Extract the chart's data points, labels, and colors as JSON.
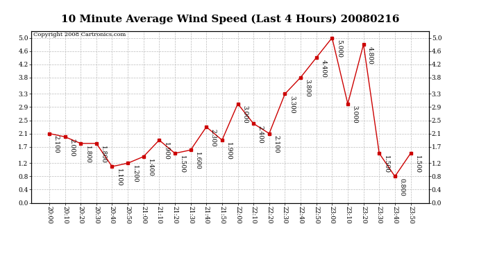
{
  "title": "10 Minute Average Wind Speed (Last 4 Hours) 20080216",
  "copyright": "Copyright 2008 Cartronics.com",
  "x_labels": [
    "20:00",
    "20:10",
    "20:20",
    "20:30",
    "20:40",
    "20:50",
    "21:00",
    "21:10",
    "21:20",
    "21:30",
    "21:40",
    "21:50",
    "22:00",
    "22:10",
    "22:20",
    "22:30",
    "22:40",
    "22:50",
    "23:00",
    "23:10",
    "23:20",
    "23:30",
    "23:40",
    "23:50"
  ],
  "y_values": [
    2.1,
    2.0,
    1.8,
    1.8,
    1.1,
    1.2,
    1.4,
    1.9,
    1.5,
    1.6,
    2.3,
    1.9,
    3.0,
    2.4,
    2.1,
    3.3,
    3.8,
    4.4,
    5.0,
    3.0,
    4.8,
    1.5,
    0.8,
    1.5
  ],
  "line_color": "#cc0000",
  "marker_color": "#cc0000",
  "bg_color": "#ffffff",
  "plot_bg_color": "#ffffff",
  "grid_color": "#bbbbbb",
  "ylim": [
    0.0,
    5.2
  ],
  "yticks": [
    0.0,
    0.4,
    0.8,
    1.2,
    1.7,
    2.1,
    2.5,
    2.9,
    3.3,
    3.8,
    4.2,
    4.6,
    5.0
  ],
  "title_fontsize": 11,
  "label_fontsize": 6.5,
  "annotation_fontsize": 6.5,
  "copyright_fontsize": 6
}
